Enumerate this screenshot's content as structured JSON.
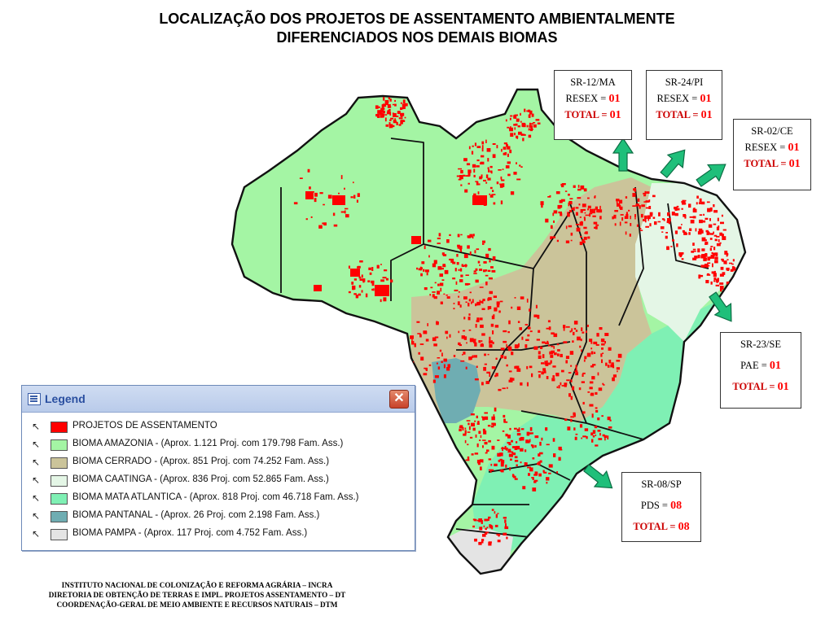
{
  "title": {
    "line1": "LOCALIZAÇÃO DOS PROJETOS DE ASSENTAMENTO AMBIENTALMENTE",
    "line2": "DIFERENCIADOS NOS DEMAIS BIOMAS"
  },
  "callouts": [
    {
      "name": "SR-12/MA",
      "type_label": "RESEX = ",
      "type_value": "01",
      "total_label": "TOTAL = ",
      "total_value": "01"
    },
    {
      "name": "SR-24/PI",
      "type_label": "RESEX = ",
      "type_value": "01",
      "total_label": "TOTAL = ",
      "total_value": "01"
    },
    {
      "name": "SR-02/CE",
      "type_label": "RESEX = ",
      "type_value": "01",
      "total_label": "TOTAL = ",
      "total_value": "01"
    },
    {
      "name": "SR-23/SE",
      "type_label": "PAE = ",
      "type_value": "01",
      "total_label": "TOTAL = ",
      "total_value": "01"
    },
    {
      "name": "SR-08/SP",
      "type_label": "PDS = ",
      "type_value": "08",
      "total_label": "TOTAL = ",
      "total_value": "08"
    }
  ],
  "legend": {
    "title": "Legend",
    "close_symbol": "✕",
    "items": [
      {
        "label": "PROJETOS DE ASSENTAMENTO",
        "color": "#ff0000"
      },
      {
        "label": "BIOMA  AMAZONIA - (Aprox. 1.121 Proj. com 179.798 Fam. Ass.)",
        "color": "#a4f5a4"
      },
      {
        "label": "BIOMA  CERRADO - (Aprox. 851 Proj. com 74.252 Fam. Ass.)",
        "color": "#cbc49a"
      },
      {
        "label": "BIOMA  CAATINGA - (Aprox. 836 Proj. com 52.865 Fam. Ass.)",
        "color": "#e4f6e6"
      },
      {
        "label": "BIOMA   MATA  ATLANTICA - (Aprox. 818 Proj. com 46.718 Fam. Ass.)",
        "color": "#7ff0b4"
      },
      {
        "label": "BIOMA  PANTANAL - (Aprox. 26 Proj. com 2.198 Fam. Ass.)",
        "color": "#6fadb2"
      },
      {
        "label": "BIOMA  PAMPA - (Aprox. 117 Proj. com 4.752 Fam. Ass.)",
        "color": "#e4e4e4"
      }
    ]
  },
  "footer": {
    "line1": "INSTITUTO NACIONAL DE COLONIZAÇÃO E REFORMA AGRÁRIA – INCRA",
    "line2": "DIRETORIA DE OBTENÇÃO DE TERRAS E IMPL. PROJETOS ASSENTAMENTO – DT",
    "line3": "COORDENAÇÃO-GERAL DE MEIO AMBIENTE E RECURSOS NATURAIS – DTM"
  },
  "colors": {
    "projects": "#ff0000",
    "amazonia": "#a4f5a4",
    "cerrado": "#cbc49a",
    "caatinga": "#e4f6e6",
    "mata_atlantica": "#7ff0b4",
    "pantanal": "#6fadb2",
    "pampa": "#e4e4e4",
    "arrow": "#1fbf7a"
  }
}
